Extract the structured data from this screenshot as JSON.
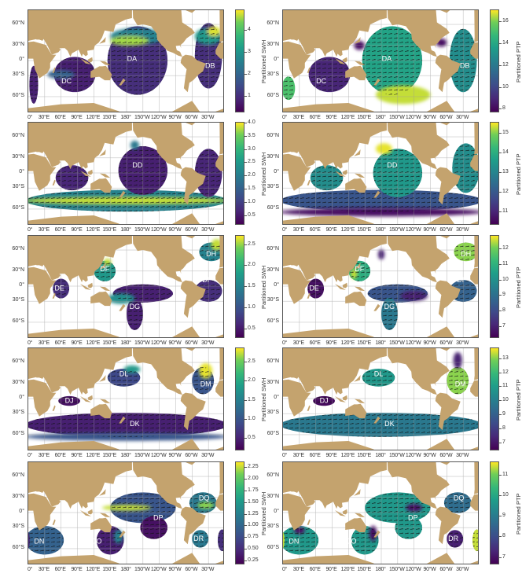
{
  "lat_ticks": [
    "60°N",
    "30°N",
    "0°",
    "30°S",
    "60°S"
  ],
  "lon_ticks": [
    "0°",
    "30°E",
    "60°E",
    "90°E",
    "120°E",
    "150°E",
    "180°",
    "150°W",
    "120°W",
    "90°W",
    "60°W",
    "30°W"
  ],
  "colors": {
    "land": "#c4a36e",
    "nodata": "#ffffff",
    "colormap": "viridis"
  },
  "panels": [
    {
      "id": "row1-left",
      "quantity": "swh",
      "labels": [
        "DA",
        "DB",
        "DC"
      ],
      "colorbar": {
        "title": "Partitioned SWH",
        "min": 0.2,
        "max": 4.9,
        "ticks": [
          "1",
          "2",
          "3",
          "4"
        ]
      }
    },
    {
      "id": "row1-right",
      "quantity": "ptp",
      "labels": [
        "DA",
        "DB",
        "DC"
      ],
      "colorbar": {
        "title": "Partitioned PTP",
        "min": 7.6,
        "max": 17,
        "ticks": [
          "8",
          "10",
          "12",
          "14",
          "16"
        ]
      }
    },
    {
      "id": "row2-left",
      "quantity": "swh",
      "labels": [
        "DD"
      ],
      "colorbar": {
        "title": "Partitioned SWH",
        "min": 0.1,
        "max": 4.0,
        "ticks": [
          "0.5",
          "1.0",
          "1.5",
          "2.0",
          "2.5",
          "3.0",
          "3.5",
          "4.0"
        ]
      }
    },
    {
      "id": "row2-right",
      "quantity": "ptp",
      "labels": [
        "DD"
      ],
      "colorbar": {
        "title": "Partitioned PTP",
        "min": 10.3,
        "max": 15.5,
        "ticks": [
          "11",
          "12",
          "13",
          "14",
          "15"
        ]
      }
    },
    {
      "id": "row3-left",
      "quantity": "swh",
      "labels": [
        "DE",
        "DF",
        "DG",
        "DH",
        "DI"
      ],
      "colorbar": {
        "title": "Partitioned SWH",
        "min": 0.25,
        "max": 2.7,
        "ticks": [
          "0.5",
          "1.0",
          "1.5",
          "2.0",
          "2.5"
        ]
      }
    },
    {
      "id": "row3-right",
      "quantity": "ptp",
      "labels": [
        "DE",
        "DF",
        "DG",
        "DH",
        "DI"
      ],
      "colorbar": {
        "title": "Partitioned PTP",
        "min": 6.2,
        "max": 12.8,
        "ticks": [
          "7",
          "8",
          "9",
          "10",
          "11",
          "12"
        ]
      }
    },
    {
      "id": "row4-left",
      "quantity": "swh",
      "labels": [
        "DJ",
        "DK",
        "DL",
        "DM"
      ],
      "colorbar": {
        "title": "Partitioned SWH",
        "min": 0.15,
        "max": 2.85,
        "ticks": [
          "0.5",
          "1.0",
          "1.5",
          "2.0",
          "2.5"
        ]
      }
    },
    {
      "id": "row4-right",
      "quantity": "ptp",
      "labels": [
        "DJ",
        "DK",
        "DL",
        "DM"
      ],
      "colorbar": {
        "title": "Partitioned PTP",
        "min": 6.4,
        "max": 13.7,
        "ticks": [
          "7",
          "8",
          "9",
          "10",
          "11",
          "12",
          "13"
        ]
      }
    },
    {
      "id": "row5-left",
      "quantity": "swh",
      "labels": [
        "DN",
        "DO",
        "DP",
        "DQ",
        "DR"
      ],
      "colorbar": {
        "title": "Partitioned SWH",
        "min": 0.15,
        "max": 2.35,
        "ticks": [
          "0.25",
          "0.50",
          "0.75",
          "1.00",
          "1.25",
          "1.50",
          "1.75",
          "2.00",
          "2.25"
        ]
      }
    },
    {
      "id": "row5-right",
      "quantity": "ptp",
      "labels": [
        "DN",
        "DO",
        "DP",
        "DQ",
        "DR"
      ],
      "colorbar": {
        "title": "Partitioned PTP",
        "min": 6.6,
        "max": 11.6,
        "ticks": [
          "7",
          "8",
          "9",
          "10",
          "11"
        ]
      }
    }
  ]
}
